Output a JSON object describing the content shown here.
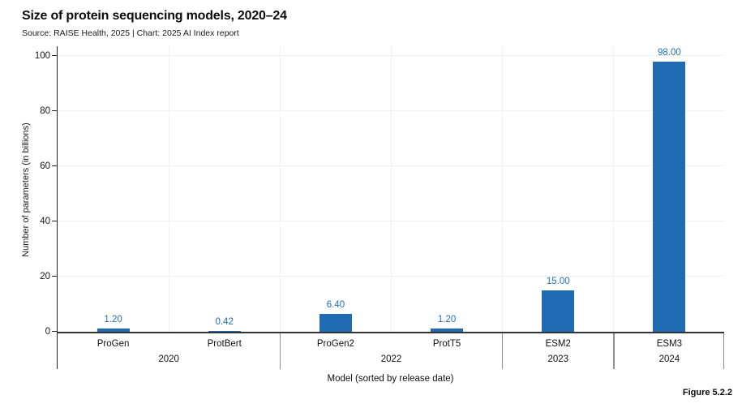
{
  "header": {
    "title": "Size of protein sequencing models, 2020–24",
    "subtitle": "Source: RAISE Health, 2025 | Chart: 2025 AI Index report"
  },
  "footer": {
    "figure_label": "Figure 5.2.2"
  },
  "chart_data": {
    "type": "bar",
    "title": "Size of protein sequencing models, 2020–24",
    "xlabel": "Model (sorted by release date)",
    "ylabel": "Number of parameters (in billions)",
    "categories": [
      "ProGen",
      "ProtBert",
      "ProGen2",
      "ProtT5",
      "ESM2",
      "ESM3"
    ],
    "values": [
      1.2,
      0.42,
      6.4,
      1.2,
      15.0,
      98.0
    ],
    "value_labels": [
      "1.20",
      "0.42",
      "6.40",
      "1.20",
      "15.00",
      "98.00"
    ],
    "groups": [
      {
        "label": "2020",
        "span": 2
      },
      {
        "label": "2022",
        "span": 2
      },
      {
        "label": "2023",
        "span": 1
      },
      {
        "label": "2024",
        "span": 1
      }
    ],
    "y_ticks": [
      0,
      20,
      40,
      60,
      80,
      100
    ],
    "ylim": [
      0,
      100
    ],
    "grid": true,
    "legend": "none",
    "bar_color": "#1f6cb4",
    "value_label_color": "#2171b5"
  }
}
